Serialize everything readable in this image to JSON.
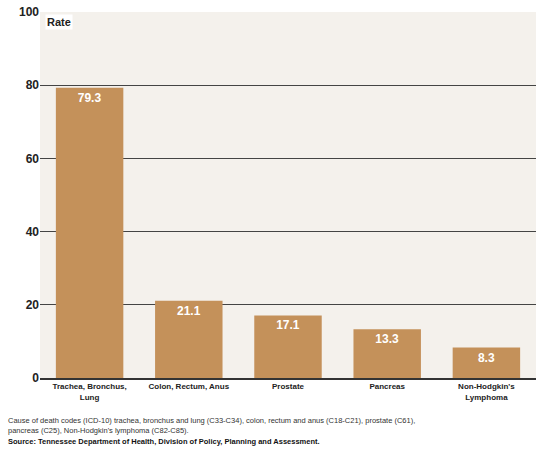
{
  "chart_data": {
    "type": "bar",
    "ylabel": "Rate",
    "categories": [
      "Trachea, Bronchus, Lung",
      "Colon, Rectum, Anus",
      "Prostate",
      "Pancreas",
      "Non-Hodgkin's Lymphoma"
    ],
    "values": [
      79.3,
      21.1,
      17.1,
      13.3,
      8.3
    ],
    "color": "#c4915a",
    "ylim": [
      0,
      100
    ],
    "yticks": [
      0,
      20,
      40,
      60,
      80,
      100
    ],
    "grid": true,
    "data_labels": true,
    "notes": [
      "Cause of death codes (ICD-10) trachea, bronchus and lung (C33-C34), colon, rectum and anus (C18-C21), prostate (C61), pancreas (C25), Non-Hodgkin's lymphoma (C82-C85).",
      "Source: Tennessee Department of Health, Division of Policy, Planning and Assessment."
    ]
  }
}
